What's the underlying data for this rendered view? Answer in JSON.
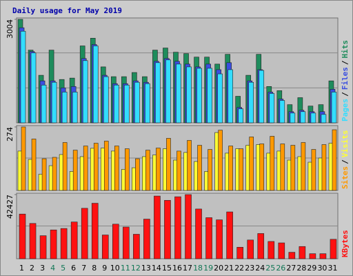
{
  "chart_data": [
    {
      "type": "bar",
      "title": "Daily usage for May 2019",
      "series": [
        {
          "name": "Pages",
          "color": "#33ddff",
          "values": [
            2659,
            2030,
            1096,
            1177,
            893,
            893,
            1806,
            2233,
            1340,
            1096,
            1096,
            1177,
            1137,
            1746,
            1827,
            1705,
            1624,
            1583,
            1583,
            1421,
            1543,
            406,
            1177,
            1522,
            852,
            650,
            284,
            325,
            284,
            244,
            893
          ]
        },
        {
          "name": "Files",
          "color": "#3a4ee0",
          "values": [
            2760,
            2070,
            1218,
            1218,
            1015,
            1055,
            1867,
            2273,
            1380,
            1137,
            1137,
            1218,
            1177,
            1786,
            1867,
            1786,
            1705,
            1624,
            1705,
            1543,
            1746,
            447,
            1218,
            1543,
            893,
            690,
            325,
            365,
            325,
            325,
            974
          ]
        },
        {
          "name": "Hits",
          "color": "#1e8c5c",
          "values": [
            3004,
            2111,
            1380,
            2111,
            1258,
            1299,
            2233,
            2456,
            1624,
            1340,
            1340,
            1461,
            1340,
            2111,
            2172,
            2050,
            2009,
            1908,
            1908,
            1705,
            1989,
            771,
            1380,
            1989,
            1055,
            934,
            528,
            731,
            487,
            528,
            1218
          ]
        }
      ],
      "ylim": [
        0,
        3004
      ],
      "yticks": [
        3004
      ],
      "legend_separator": "/"
    },
    {
      "type": "bar",
      "series": [
        {
          "name": "Sites",
          "color": "#ff9900",
          "values": [
            274,
            222,
            137,
            143,
            207,
            174,
            192,
            204,
            213,
            192,
            180,
            137,
            174,
            183,
            225,
            170,
            216,
            195,
            177,
            260,
            192,
            180,
            231,
            201,
            234,
            201,
            195,
            207,
            177,
            198,
            262
          ]
        },
        {
          "name": "Visits",
          "color": "#ffff33",
          "values": [
            170,
            134,
            70,
            107,
            155,
            82,
            146,
            182,
            183,
            170,
            91,
            98,
            146,
            153,
            180,
            131,
            164,
            125,
            82,
            250,
            161,
            180,
            195,
            198,
            161,
            170,
            131,
            146,
            122,
            140,
            204
          ]
        }
      ],
      "ylim": [
        0,
        274
      ],
      "yticks": [
        274
      ],
      "legend_separator": "/"
    },
    {
      "type": "bar",
      "categories": [
        "1",
        "2",
        "3",
        "4",
        "5",
        "6",
        "7",
        "8",
        "9",
        "10",
        "11",
        "12",
        "13",
        "14",
        "15",
        "16",
        "17",
        "18",
        "19",
        "20",
        "21",
        "22",
        "23",
        "24",
        "25",
        "26",
        "27",
        "28",
        "29",
        "30",
        "31"
      ],
      "category_colors": [
        "#000000",
        "#000000",
        "#000000",
        "#117755",
        "#117755",
        "#000000",
        "#000000",
        "#000000",
        "#000000",
        "#000000",
        "#117755",
        "#117755",
        "#000000",
        "#000000",
        "#000000",
        "#000000",
        "#000000",
        "#117755",
        "#117755",
        "#000000",
        "#000000",
        "#000000",
        "#000000",
        "#000000",
        "#117755",
        "#117755",
        "#000000",
        "#000000",
        "#000000",
        "#000000",
        "#000000"
      ],
      "series": [
        {
          "name": "KBytes",
          "color": "#ff1111",
          "values": [
            29554,
            23357,
            15253,
            19067,
            20020,
            24310,
            33367,
            36704,
            15730,
            22880,
            20973,
            16206,
            26218,
            41474,
            38613,
            40997,
            42427,
            32890,
            27171,
            25741,
            30985,
            7627,
            12394,
            16683,
            11440,
            10487,
            4290,
            8104,
            3337,
            3337,
            12871
          ]
        }
      ],
      "ylim": [
        0,
        42427
      ],
      "yticks": [
        42427
      ]
    }
  ]
}
